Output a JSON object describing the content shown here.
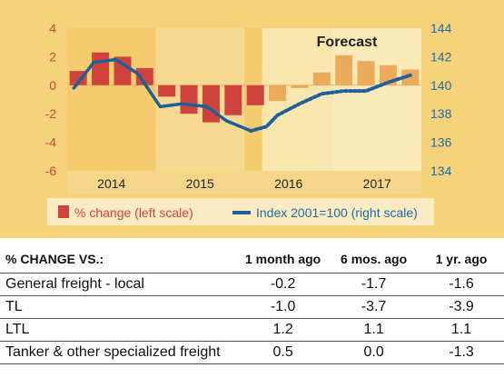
{
  "chart_data": {
    "type": "bar",
    "x_labels": [
      "2014",
      "2015",
      "2016",
      "2017"
    ],
    "left_axis": {
      "ticks": [
        "4",
        "2",
        "0",
        "-2",
        "-4",
        "-6"
      ],
      "range": [
        -6,
        4
      ]
    },
    "right_axis": {
      "ticks": [
        "144",
        "142",
        "140",
        "138",
        "136",
        "134"
      ],
      "range": [
        134,
        144
      ]
    },
    "forecast_label": "Forecast",
    "series": [
      {
        "name": "% change (left scale)",
        "type": "bar",
        "x": [
          0.5,
          1.5,
          2.5,
          3.5,
          4.5,
          5.5,
          6.5,
          7.5,
          8.5,
          9.5,
          10.5,
          11.5,
          12.5,
          13.5,
          14.5,
          15.5
        ],
        "values": [
          1.0,
          2.3,
          2.0,
          1.2,
          -0.8,
          -2.0,
          -2.6,
          -2.1,
          -1.4,
          -1.1,
          -0.2,
          0.9,
          2.1,
          1.7,
          1.4,
          1.1
        ],
        "forecast_from_index": 9
      },
      {
        "name": "Index 2001=100 (right scale)",
        "type": "line",
        "x": [
          0.3,
          1.2,
          2.2,
          3.2,
          4.2,
          5.2,
          6.3,
          7.2,
          8.3,
          9.0,
          9.5,
          10.5,
          11.5,
          12.5,
          13.5,
          14.5,
          15.5
        ],
        "values": [
          139.8,
          141.6,
          141.8,
          140.8,
          138.5,
          138.7,
          138.5,
          137.5,
          136.8,
          137.1,
          137.9,
          138.7,
          139.4,
          139.6,
          139.6,
          140.2,
          140.7
        ],
        "forecast_from_index": 9
      }
    ],
    "colors": {
      "bar_actual": "#d2423d",
      "bar_forecast": "#ecab59",
      "line": "#1d5f9c",
      "band_dark": "#f4cc6e",
      "band_light": "#f7da92",
      "forecast_band": "#fbefc4",
      "left_axis_text": "#d2423d",
      "right_axis_text": "#1c6aa8"
    }
  },
  "table": {
    "headers": [
      "% CHANGE VS.:",
      "1 month ago",
      "6 mos. ago",
      "1 yr. ago"
    ],
    "rows": [
      {
        "label": "General freight - local",
        "values": [
          "-0.2",
          "-1.7",
          "-1.6"
        ]
      },
      {
        "label": "TL",
        "values": [
          "-1.0",
          "-3.7",
          "-3.9"
        ]
      },
      {
        "label": "LTL",
        "values": [
          "1.2",
          "1.1",
          "1.1"
        ]
      },
      {
        "label": "Tanker & other specialized freight",
        "values": [
          "0.5",
          "0.0",
          "-1.3"
        ]
      }
    ]
  }
}
